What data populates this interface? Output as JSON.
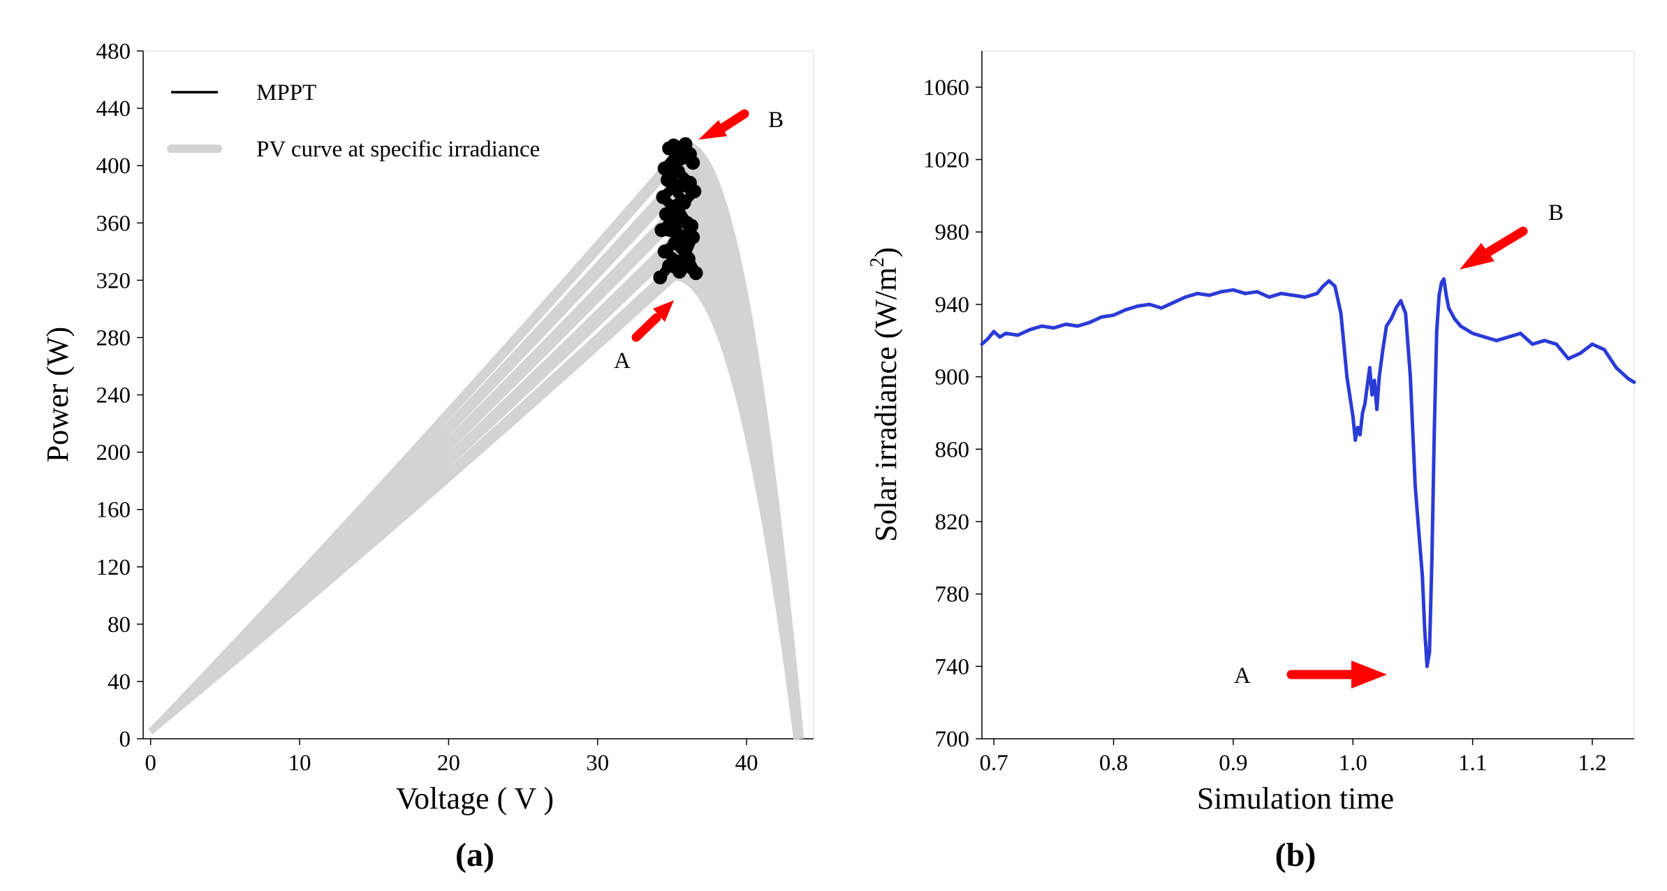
{
  "chart_data": [
    {
      "id": "a",
      "type": "line",
      "panel_label": "(a)",
      "title": "",
      "xlabel": "Voltage ( V )",
      "ylabel": "Power (W)",
      "xlim": [
        -0.5,
        44.5
      ],
      "ylim": [
        0,
        480
      ],
      "x_ticks": [
        0,
        10,
        20,
        30,
        40
      ],
      "y_ticks": [
        0,
        40,
        80,
        120,
        160,
        200,
        240,
        280,
        320,
        360,
        400,
        440,
        480
      ],
      "legend": {
        "position": "top-left",
        "entries": [
          {
            "label": "MPPT",
            "color": "#000000"
          },
          {
            "label": "PV curve at specific irradiance",
            "color": "#d3d3d3"
          }
        ]
      },
      "series": [
        {
          "name": "PV curve at specific irradiance",
          "color": "#d3d3d3",
          "curve_model": {
            "v_open_circuit": 43.5,
            "v_mpp": 35.5,
            "p_mpp_range_W": [
              322,
              415
            ]
          },
          "p_mpp_values": [
            322,
            325,
            329,
            333,
            337,
            341,
            345,
            349,
            353,
            357,
            361,
            365,
            369,
            373,
            377,
            381,
            385,
            389,
            393,
            397,
            401,
            405,
            409,
            412,
            415
          ]
        },
        {
          "name": "MPPT",
          "color": "#000000",
          "x": [
            34.2,
            34.8,
            35.5,
            36.1,
            36.6,
            34.5,
            35.2,
            35.9,
            36.4,
            34.3,
            35.0,
            35.7,
            36.3,
            34.6,
            35.3,
            36.0,
            34.4,
            35.1,
            35.8,
            36.5,
            34.7,
            35.4,
            36.2,
            34.9,
            35.6,
            34.5,
            35.5,
            36.4,
            34.8,
            35.9,
            36.2,
            35.1
          ],
          "y": [
            322,
            330,
            326,
            335,
            325,
            340,
            346,
            338,
            350,
            355,
            362,
            348,
            358,
            366,
            372,
            360,
            378,
            385,
            374,
            382,
            390,
            396,
            388,
            400,
            405,
            398,
            410,
            402,
            412,
            415,
            408,
            414
          ]
        }
      ],
      "annotations": [
        {
          "text": "A",
          "x": 32.5,
          "y": 265,
          "arrow_to": [
            35.0,
            306
          ]
        },
        {
          "text": "B",
          "x": 41.5,
          "y": 432,
          "arrow_to": [
            36.2,
            416
          ]
        }
      ]
    },
    {
      "id": "b",
      "type": "line",
      "panel_label": "(b)",
      "title": "",
      "xlabel": "Simulation time",
      "ylabel": "Solar irradiance (W/m",
      "ylabel_superscript": "2",
      "ylabel_suffix": ")",
      "xlim": [
        0.69,
        1.235
      ],
      "ylim": [
        700,
        1080
      ],
      "x_ticks": [
        0.7,
        0.8,
        0.9,
        1.0,
        1.1,
        1.2
      ],
      "x_tick_labels": [
        "0.7",
        "0.8",
        "0.9",
        "1.0",
        "1.1",
        "1.2"
      ],
      "y_ticks": [
        700,
        740,
        780,
        820,
        860,
        900,
        940,
        980,
        1020,
        1060
      ],
      "series": [
        {
          "name": "Solar irradiance",
          "color": "#2b3bd6",
          "x": [
            0.69,
            0.695,
            0.7,
            0.705,
            0.71,
            0.72,
            0.73,
            0.74,
            0.75,
            0.76,
            0.77,
            0.78,
            0.79,
            0.8,
            0.81,
            0.82,
            0.83,
            0.84,
            0.85,
            0.86,
            0.87,
            0.88,
            0.89,
            0.9,
            0.91,
            0.92,
            0.93,
            0.94,
            0.95,
            0.96,
            0.97,
            0.975,
            0.98,
            0.985,
            0.99,
            0.995,
            1.0,
            1.002,
            1.004,
            1.006,
            1.008,
            1.01,
            1.012,
            1.014,
            1.016,
            1.018,
            1.02,
            1.022,
            1.025,
            1.028,
            1.032,
            1.036,
            1.04,
            1.044,
            1.048,
            1.052,
            1.055,
            1.058,
            1.06,
            1.062,
            1.064,
            1.066,
            1.068,
            1.07,
            1.072,
            1.074,
            1.076,
            1.078,
            1.08,
            1.085,
            1.09,
            1.1,
            1.11,
            1.12,
            1.13,
            1.14,
            1.15,
            1.16,
            1.17,
            1.18,
            1.19,
            1.2,
            1.21,
            1.22,
            1.23,
            1.235
          ],
          "y": [
            918,
            921,
            925,
            922,
            924,
            923,
            926,
            928,
            927,
            929,
            928,
            930,
            933,
            934,
            937,
            939,
            940,
            938,
            941,
            944,
            946,
            945,
            947,
            948,
            946,
            947,
            944,
            946,
            945,
            944,
            946,
            950,
            953,
            950,
            935,
            900,
            878,
            865,
            872,
            868,
            880,
            885,
            895,
            905,
            890,
            898,
            882,
            900,
            915,
            928,
            932,
            938,
            942,
            935,
            900,
            840,
            815,
            790,
            760,
            740,
            748,
            800,
            870,
            925,
            945,
            952,
            954,
            945,
            938,
            932,
            928,
            924,
            922,
            920,
            922,
            924,
            918,
            920,
            918,
            910,
            913,
            918,
            915,
            905,
            899,
            897
          ]
        }
      ],
      "annotations": [
        {
          "text": "A",
          "x": 0.95,
          "y": 733,
          "arrow_to": [
            1.035,
            734
          ]
        },
        {
          "text": "B",
          "x": 1.145,
          "y": 990,
          "arrow_to": [
            1.08,
            961
          ]
        }
      ]
    }
  ]
}
